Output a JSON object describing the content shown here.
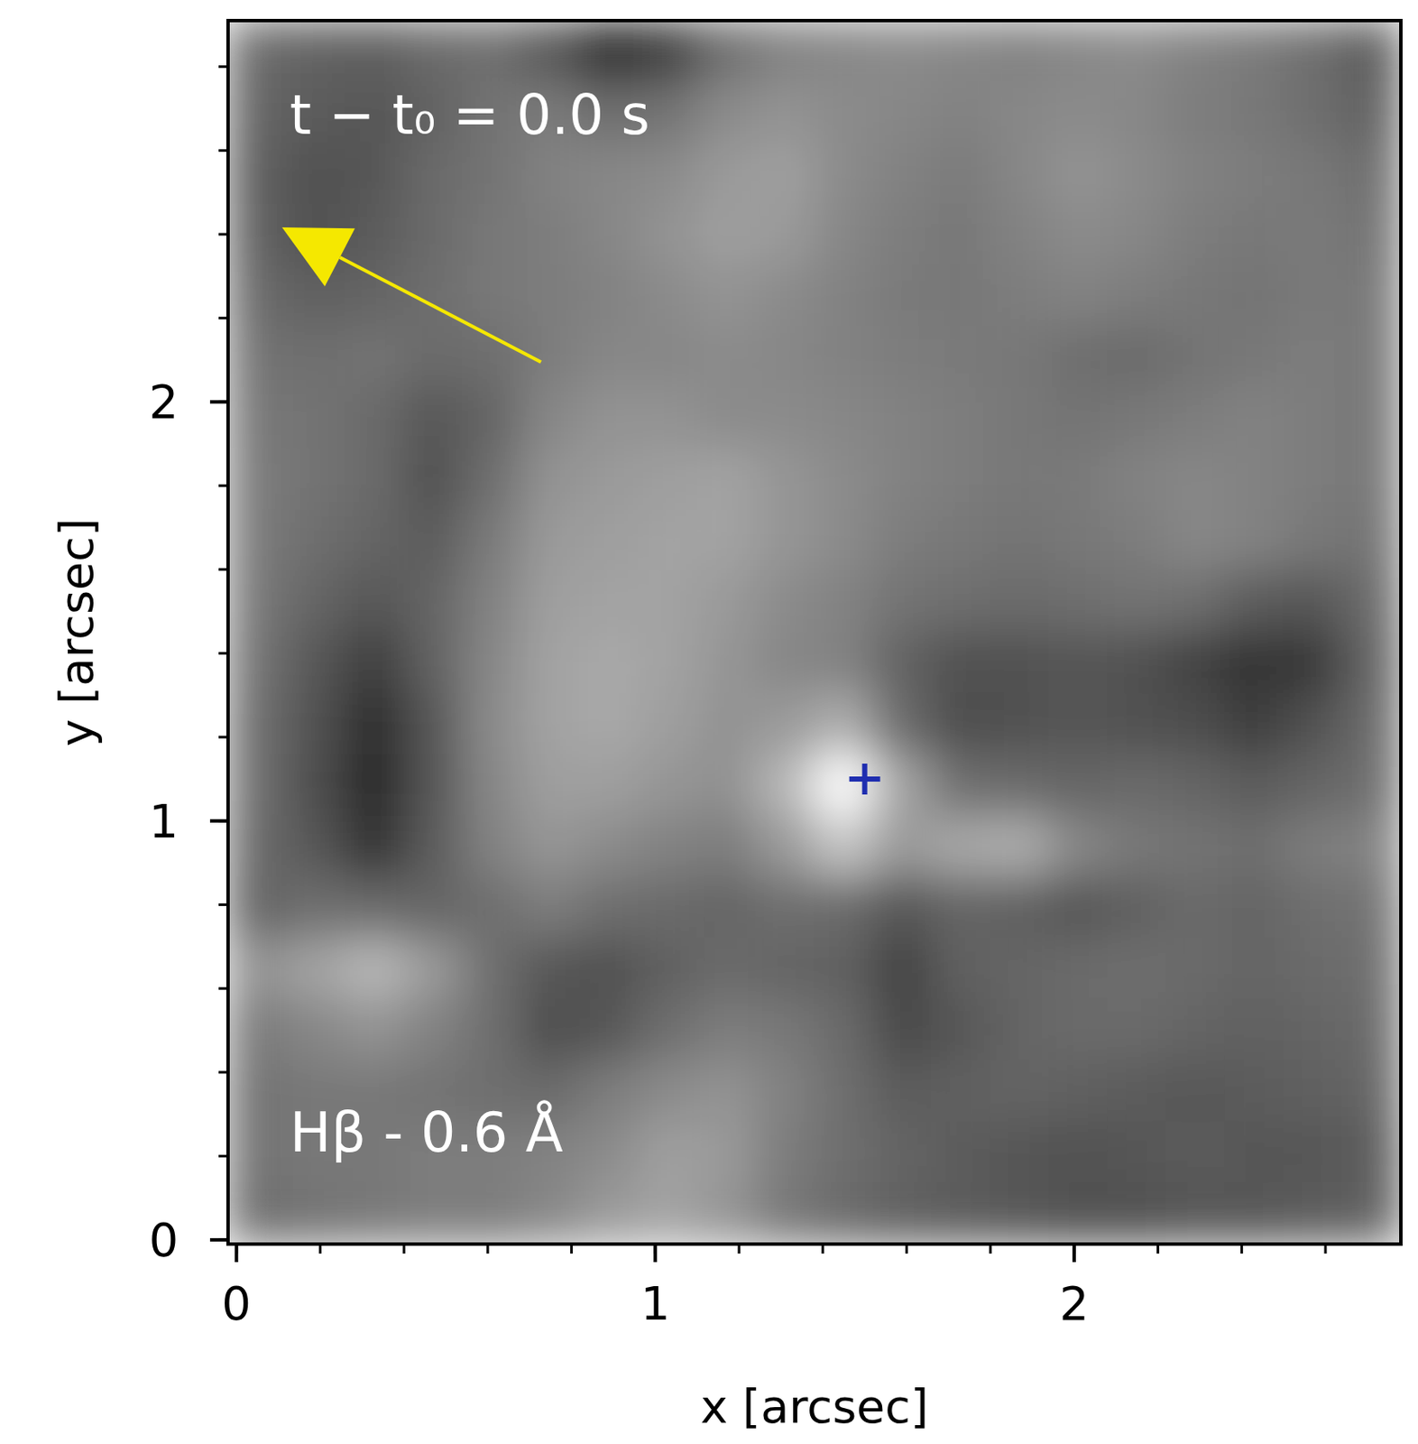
{
  "chart_data": {
    "type": "heatmap",
    "xlabel": "x [arcsec]",
    "ylabel": "y [arcsec]",
    "xlim": [
      -0.02,
      2.78
    ],
    "ylim": [
      -0.01,
      2.91
    ],
    "xticks": [
      0,
      1,
      2
    ],
    "yticks": [
      0,
      1,
      2
    ],
    "color_range": [
      0,
      100
    ],
    "annotations": [
      {
        "text": "t − t₀ = 0.0 s"
      },
      {
        "text": "Hβ - 0.6 Å"
      }
    ],
    "series": [
      {
        "type": "scatter",
        "marker": "plus",
        "color": "#1f2eb0",
        "x": [
          1.5
        ],
        "values": [
          1.1
        ]
      }
    ],
    "cells": [
      [
        38,
        35,
        33,
        38,
        40,
        30,
        12,
        20,
        40,
        48,
        50,
        52,
        50,
        48,
        50,
        52,
        48,
        45,
        40,
        32
      ],
      [
        36,
        32,
        30,
        35,
        42,
        45,
        40,
        42,
        52,
        55,
        52,
        50,
        48,
        50,
        52,
        50,
        46,
        44,
        40,
        35
      ],
      [
        34,
        28,
        30,
        38,
        42,
        48,
        50,
        52,
        58,
        60,
        52,
        48,
        45,
        50,
        55,
        52,
        48,
        46,
        44,
        40
      ],
      [
        35,
        28,
        32,
        38,
        44,
        46,
        50,
        55,
        60,
        58,
        50,
        46,
        44,
        48,
        52,
        50,
        46,
        44,
        45,
        42
      ],
      [
        38,
        34,
        36,
        40,
        44,
        46,
        48,
        52,
        55,
        52,
        48,
        45,
        44,
        46,
        48,
        46,
        44,
        42,
        45,
        44
      ],
      [
        42,
        40,
        42,
        38,
        40,
        46,
        50,
        50,
        52,
        50,
        48,
        46,
        45,
        44,
        40,
        38,
        42,
        44,
        46,
        44
      ],
      [
        44,
        42,
        38,
        30,
        36,
        50,
        55,
        55,
        52,
        52,
        50,
        48,
        46,
        44,
        42,
        44,
        46,
        48,
        46,
        44
      ],
      [
        45,
        42,
        38,
        28,
        40,
        55,
        58,
        60,
        62,
        56,
        52,
        48,
        46,
        44,
        45,
        48,
        50,
        48,
        46,
        44
      ],
      [
        45,
        40,
        36,
        32,
        45,
        58,
        60,
        62,
        62,
        56,
        52,
        46,
        44,
        42,
        44,
        46,
        50,
        48,
        44,
        42
      ],
      [
        44,
        36,
        30,
        36,
        48,
        60,
        62,
        62,
        58,
        52,
        48,
        42,
        40,
        38,
        40,
        42,
        40,
        32,
        30,
        38
      ],
      [
        42,
        30,
        20,
        35,
        50,
        62,
        64,
        62,
        56,
        50,
        48,
        35,
        28,
        28,
        30,
        28,
        22,
        14,
        18,
        36
      ],
      [
        40,
        28,
        12,
        30,
        52,
        62,
        64,
        60,
        55,
        58,
        66,
        38,
        26,
        28,
        30,
        28,
        26,
        20,
        28,
        38
      ],
      [
        40,
        26,
        10,
        30,
        50,
        60,
        60,
        56,
        54,
        70,
        100,
        62,
        40,
        38,
        36,
        38,
        36,
        32,
        36,
        40
      ],
      [
        38,
        30,
        14,
        32,
        48,
        56,
        52,
        48,
        46,
        58,
        76,
        58,
        64,
        66,
        50,
        44,
        42,
        40,
        46,
        48
      ],
      [
        36,
        40,
        38,
        36,
        40,
        46,
        40,
        38,
        36,
        40,
        38,
        30,
        36,
        34,
        30,
        34,
        38,
        36,
        40,
        42
      ],
      [
        55,
        62,
        70,
        58,
        40,
        30,
        28,
        34,
        38,
        36,
        34,
        22,
        34,
        36,
        38,
        40,
        38,
        36,
        38,
        40
      ],
      [
        45,
        50,
        55,
        48,
        40,
        26,
        30,
        40,
        46,
        44,
        38,
        24,
        30,
        36,
        38,
        38,
        36,
        34,
        36,
        38
      ],
      [
        42,
        44,
        44,
        42,
        40,
        38,
        46,
        52,
        55,
        48,
        40,
        32,
        34,
        36,
        34,
        32,
        30,
        32,
        34,
        36
      ],
      [
        42,
        44,
        44,
        46,
        46,
        48,
        52,
        60,
        58,
        46,
        40,
        36,
        32,
        30,
        28,
        30,
        32,
        30,
        30,
        32
      ],
      [
        40,
        42,
        44,
        46,
        46,
        50,
        58,
        62,
        56,
        44,
        38,
        34,
        32,
        30,
        28,
        28,
        30,
        30,
        32,
        34
      ]
    ]
  }
}
